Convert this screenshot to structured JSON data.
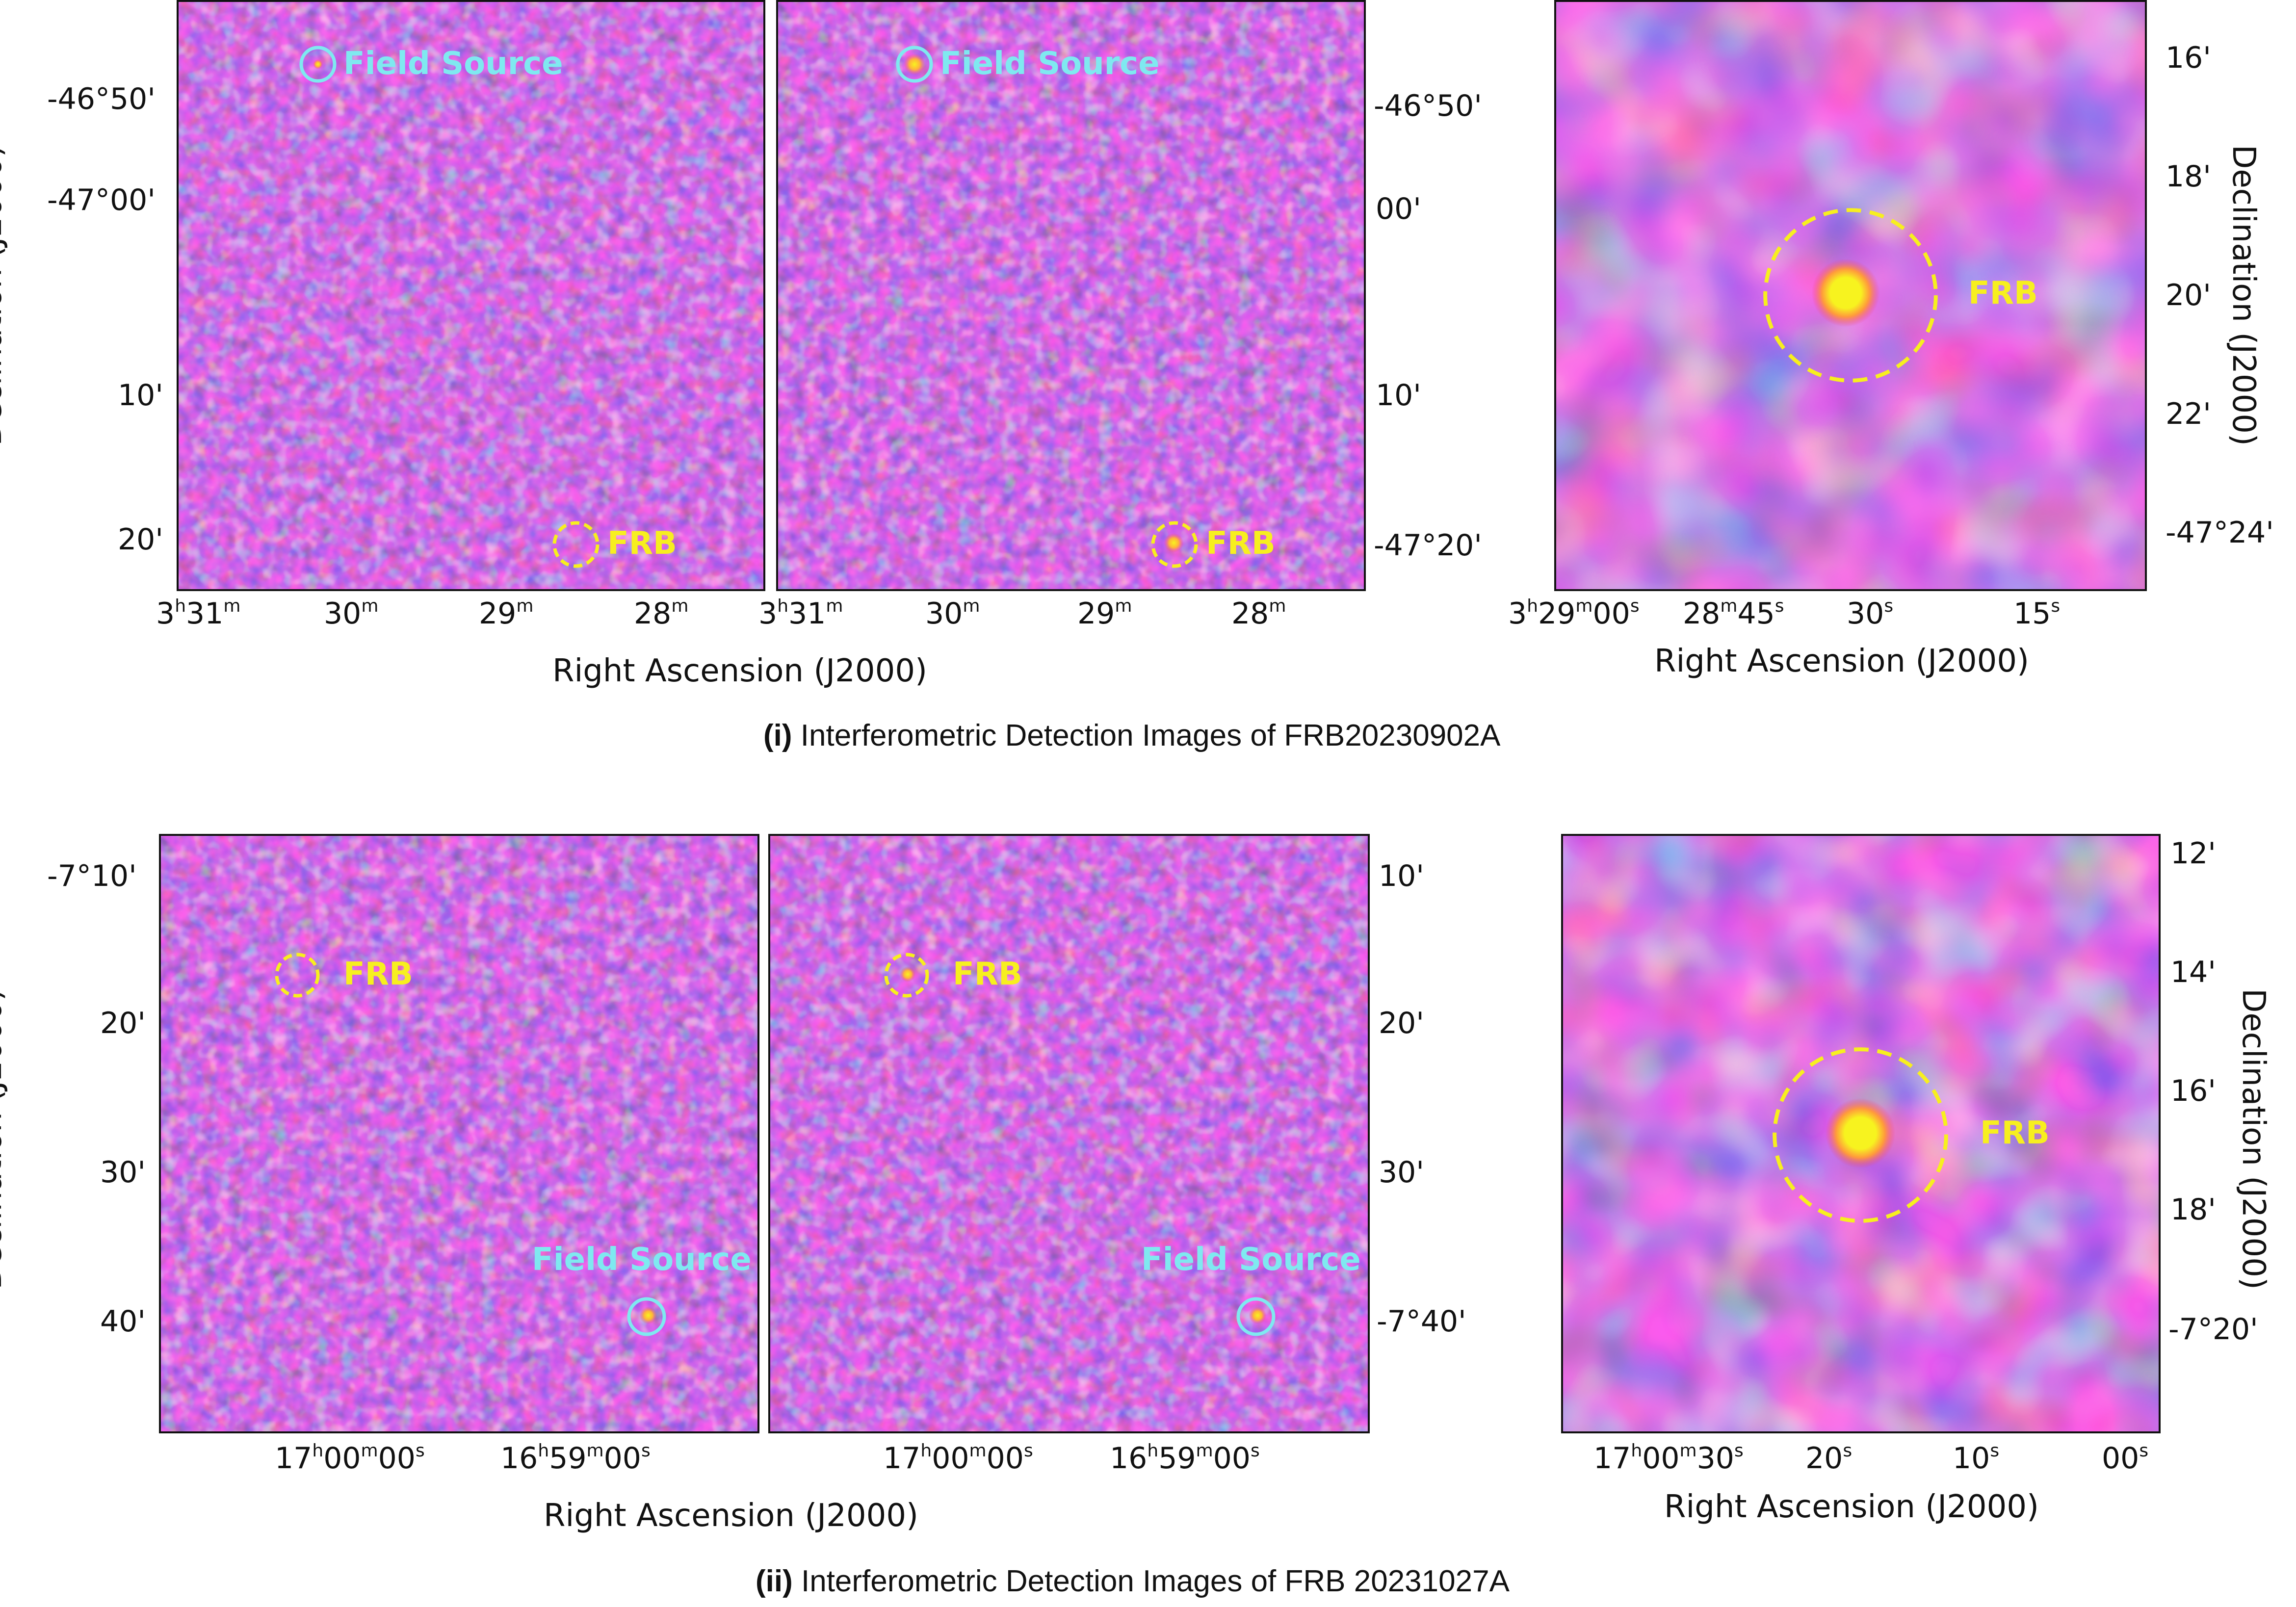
{
  "figure": {
    "top": {
      "caption_prefix": "(i)",
      "caption_text": "Interferometric Detection Images of FRB20230902A",
      "ra_axis_title": "Right Ascension (J2000)",
      "dec_axis_title": "Declination (J2000)",
      "wide_dec_ticks": [
        "-46°50'",
        "-47°00'",
        "10'",
        "20'"
      ],
      "wide_dec_ticks_right": [
        "-46°50'",
        "00'",
        "10'",
        "-47°20'"
      ],
      "wide_ra_ticks": [
        [
          "3",
          "h",
          "31",
          "m"
        ],
        [
          "30",
          "m"
        ],
        [
          "29",
          "m"
        ],
        [
          "28",
          "m"
        ]
      ],
      "zoom_dec_ticks": [
        "16'",
        "18'",
        "20'",
        "22'",
        "-47°24'"
      ],
      "zoom_ra_ticks": [
        [
          "3",
          "h",
          "29",
          "m",
          "00",
          "s"
        ],
        [
          "28",
          "m",
          "45",
          "s"
        ],
        [
          "30",
          "s"
        ],
        [
          "15",
          "s"
        ]
      ],
      "field_source_label": "Field Source",
      "frb_label": "FRB"
    },
    "bottom": {
      "caption_prefix": "(ii)",
      "caption_text": "Interferometric Detection Images of FRB 20231027A",
      "ra_axis_title": "Right Ascension (J2000)",
      "dec_axis_title": "Declination (J2000)",
      "wide_dec_ticks": [
        "-7°10'",
        "20'",
        "30'",
        "40'"
      ],
      "wide_dec_ticks_right": [
        "10'",
        "20'",
        "30'",
        "-7°40'"
      ],
      "wide_ra_ticks": [
        [
          "17",
          "h",
          "00",
          "m",
          "00",
          "s"
        ],
        [
          "16",
          "h",
          "59",
          "m",
          "00",
          "s"
        ]
      ],
      "zoom_dec_ticks": [
        "12'",
        "14'",
        "16'",
        "18'",
        "-7°20'"
      ],
      "zoom_ra_ticks": [
        [
          "17",
          "h",
          "00",
          "m",
          "30",
          "s"
        ],
        [
          "20",
          "s"
        ],
        [
          "10",
          "s"
        ],
        [
          "00",
          "s"
        ]
      ],
      "field_source_label": "Field Source",
      "frb_label": "FRB"
    },
    "colors": {
      "frb_marker": "#f7ef1f",
      "field_source_marker": "#7fe9f0",
      "colormap": [
        "#1a22e0",
        "#6a1fd6",
        "#b623c8",
        "#f0457a",
        "#ff9a3c",
        "#f7f31f"
      ]
    }
  }
}
